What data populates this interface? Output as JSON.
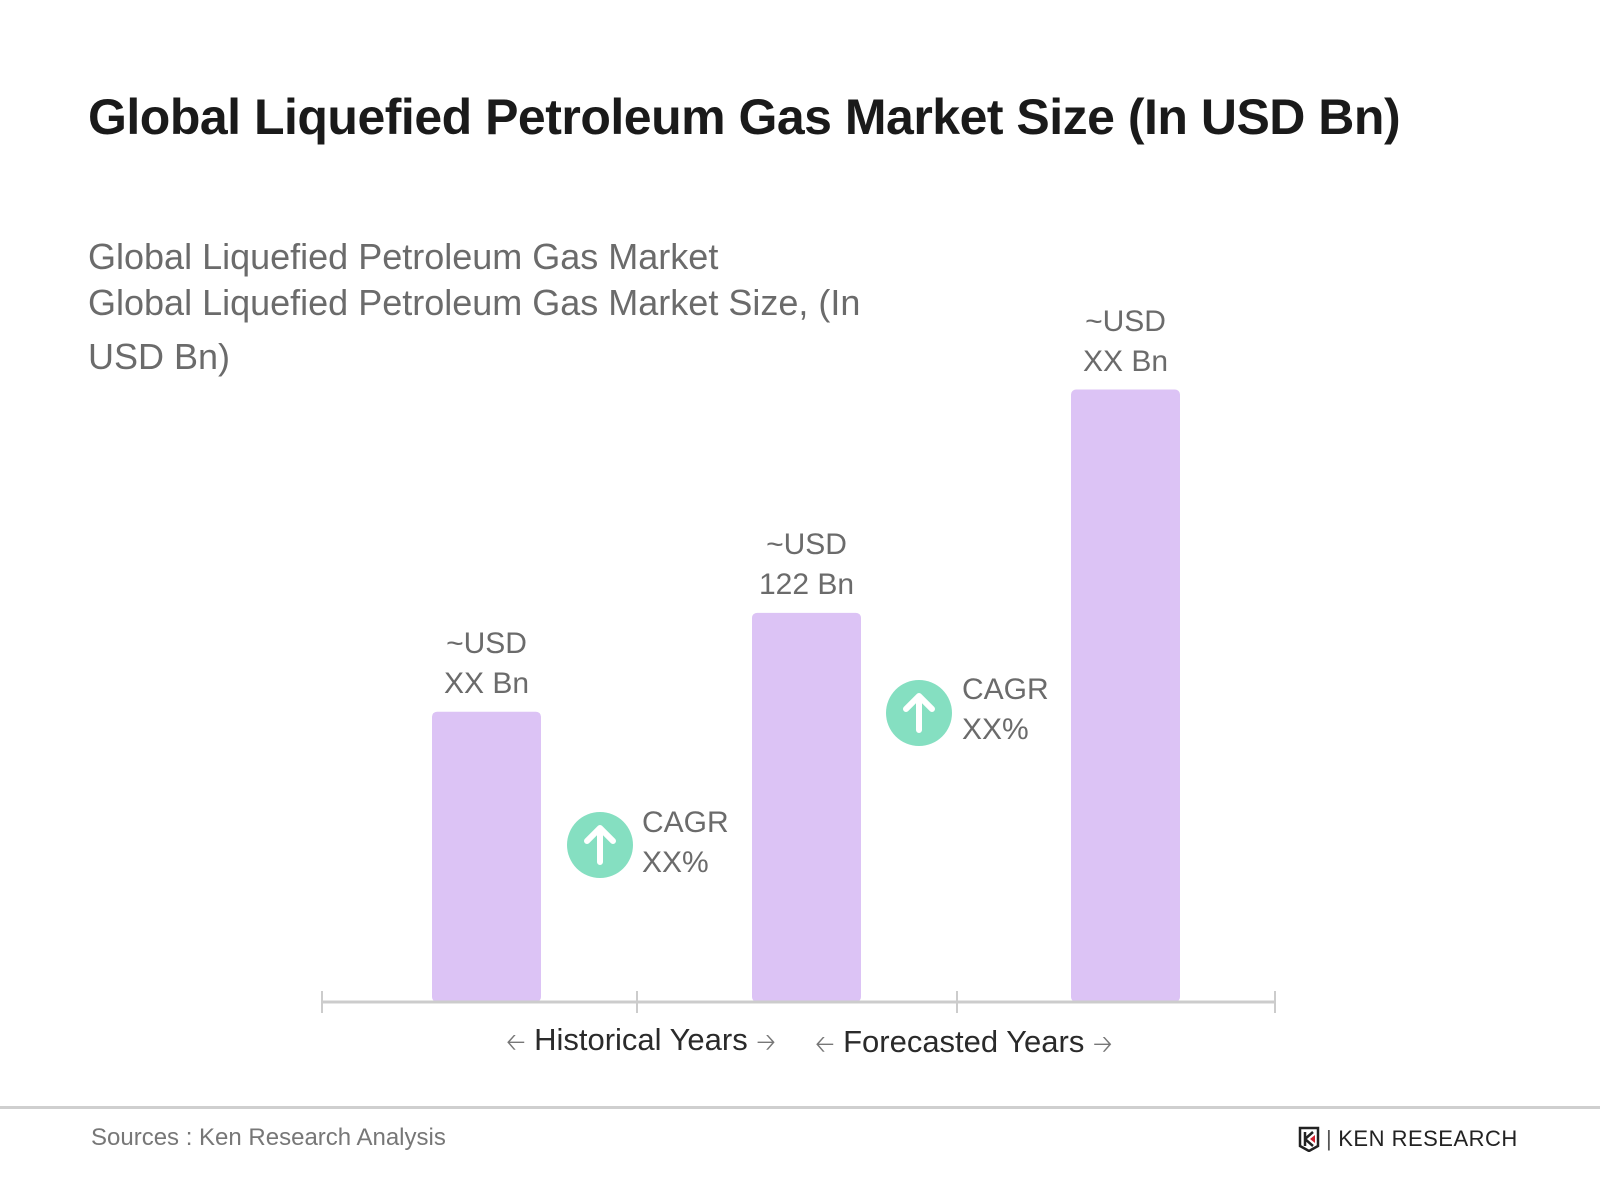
{
  "title": "Global Liquefied Petroleum Gas Market Size (In USD Bn)",
  "subtitle_line1": "Global Liquefied Petroleum Gas Market",
  "subtitle_line2": "Global Liquefied Petroleum Gas Market Size, (In",
  "subtitle_line3": "USD Bn)",
  "chart_data": {
    "type": "bar",
    "values": [
      91,
      122,
      192
    ],
    "labels": [
      {
        "l1": "~USD",
        "l2": "XX Bn"
      },
      {
        "l1": "~USD",
        "l2": "122 Bn"
      },
      {
        "l1": "~USD",
        "l2": "XX Bn"
      }
    ],
    "bar_color": "#dcc3f5",
    "cagr": [
      {
        "l1": "CAGR",
        "l2": "XX%"
      },
      {
        "l1": "CAGR",
        "l2": "XX%"
      }
    ],
    "cagr_color": "#85dfc1",
    "periods": [
      "Historical Years",
      "Forecasted Years"
    ],
    "grid": false
  },
  "footer": {
    "source": "Sources : Ken Research Analysis",
    "logo": "KEN RESEARCH"
  }
}
